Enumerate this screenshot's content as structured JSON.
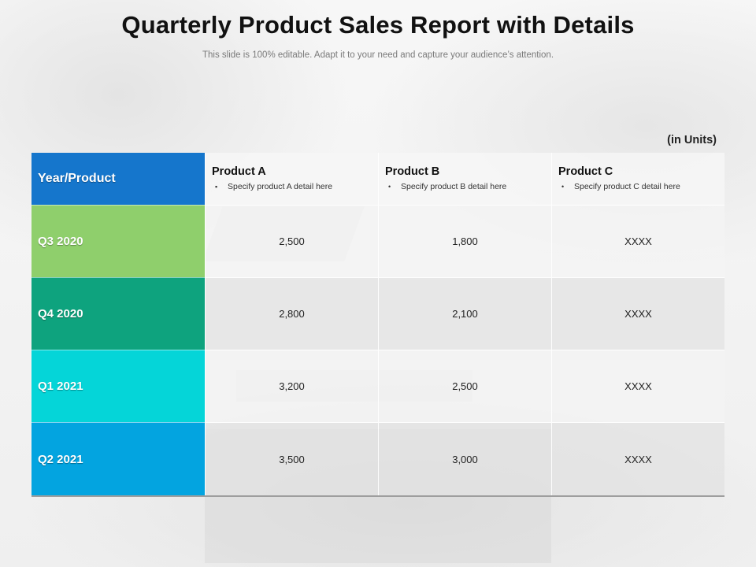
{
  "title": "Quarterly Product Sales Report with Details",
  "subtitle": "This slide is 100% editable. Adapt it to your need and capture your audience’s attention.",
  "units": "(in Units)",
  "table": {
    "corner_header": "Year/Product",
    "columns": [
      {
        "name": "Product A",
        "detail": "Specify product A detail here",
        "bullet": "▪"
      },
      {
        "name": "Product B",
        "detail": "Specify product B detail here",
        "bullet": "•"
      },
      {
        "name": "Product C",
        "detail": "Specify product C detail here",
        "bullet": "•"
      }
    ],
    "rows": [
      {
        "label": "Q3 2020",
        "color": "#8fcf6c",
        "values": [
          "2,500",
          "1,800",
          "XXXX"
        ]
      },
      {
        "label": "Q4 2020",
        "color": "#0ea37e",
        "values": [
          "2,800",
          "2,100",
          "XXXX"
        ]
      },
      {
        "label": "Q1 2021",
        "color": "#05d5d8",
        "values": [
          "3,200",
          "2,500",
          "XXXX"
        ]
      },
      {
        "label": "Q2 2021",
        "color": "#03a4e0",
        "values": [
          "3,500",
          "3,000",
          "XXXX"
        ]
      }
    ]
  },
  "colors": {
    "header_accent": "#1576cc"
  }
}
